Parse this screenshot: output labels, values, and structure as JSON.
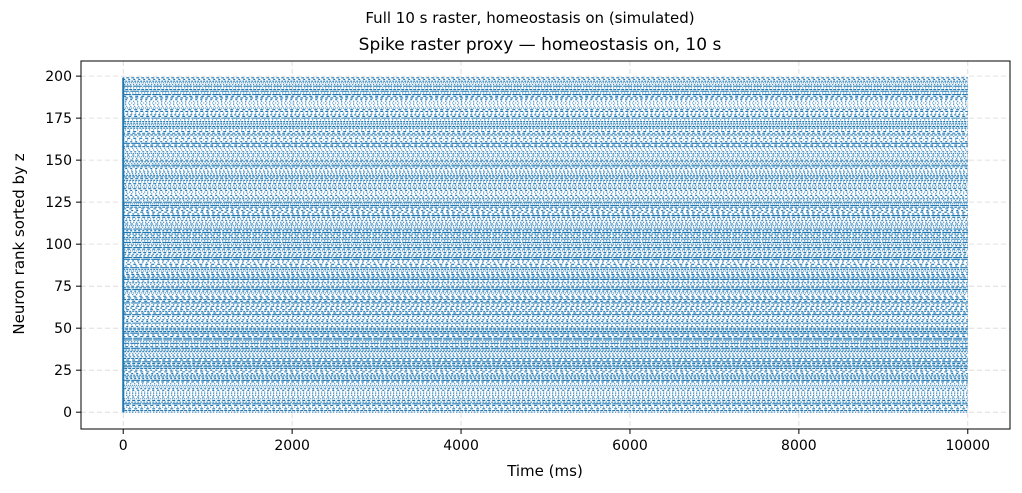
{
  "figure": {
    "suptitle": "Full 10 s raster, homeostasis on (simulated)"
  },
  "chart_data": {
    "type": "scatter",
    "title": "Spike raster proxy — homeostasis on, 10 s",
    "xlabel": "Time (ms)",
    "ylabel": "Neuron rank sorted by z",
    "xlim": [
      -500,
      10500
    ],
    "ylim": [
      -10,
      209
    ],
    "xticks": [
      0,
      2000,
      4000,
      6000,
      8000,
      10000
    ],
    "xtick_labels": [
      "0",
      "2000",
      "4000",
      "6000",
      "8000",
      "10000"
    ],
    "yticks": [
      0,
      25,
      50,
      75,
      100,
      125,
      150,
      175,
      200
    ],
    "ytick_labels": [
      "0",
      "25",
      "50",
      "75",
      "100",
      "125",
      "150",
      "175",
      "200"
    ],
    "grid": true,
    "grid_style": "dashed",
    "color": "#1f77b4",
    "neuron_count": 200,
    "duration_ms": 10000
  }
}
